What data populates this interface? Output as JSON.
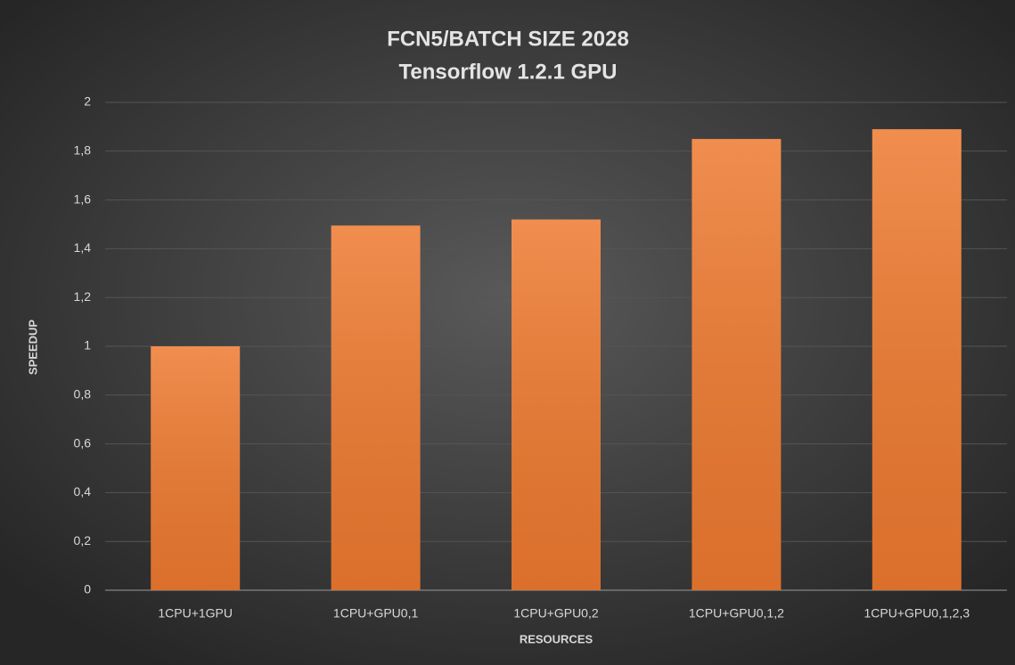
{
  "chart_data": {
    "type": "bar",
    "title": "FCN5/BATCH SIZE 2028",
    "subtitle": "Tensorflow 1.2.1 GPU",
    "x_label": "RESOURCES",
    "y_label": "SPEEDUP",
    "categories": [
      "1CPU+1GPU",
      "1CPU+GPU0,1",
      "1CPU+GPU0,2",
      "1CPU+GPU0,1,2",
      "1CPU+GPU0,1,2,3"
    ],
    "values": [
      1.0,
      1.495,
      1.52,
      1.85,
      1.89
    ],
    "color": "#ee7a30",
    "ylim": [
      0,
      2
    ],
    "yticks": [
      0,
      {
        "value": 0.2,
        "label": "0,2"
      },
      {
        "value": 0.4,
        "label": "0,4"
      },
      {
        "value": 0.6,
        "label": "0,6"
      },
      {
        "value": 0.8,
        "label": "0,8"
      },
      1,
      {
        "value": 1.2,
        "label": "1,2"
      },
      {
        "value": 1.4,
        "label": "1,4"
      },
      {
        "value": 1.6,
        "label": "1,6"
      },
      {
        "value": 1.8,
        "label": "1,8"
      },
      2
    ],
    "grid": true
  }
}
